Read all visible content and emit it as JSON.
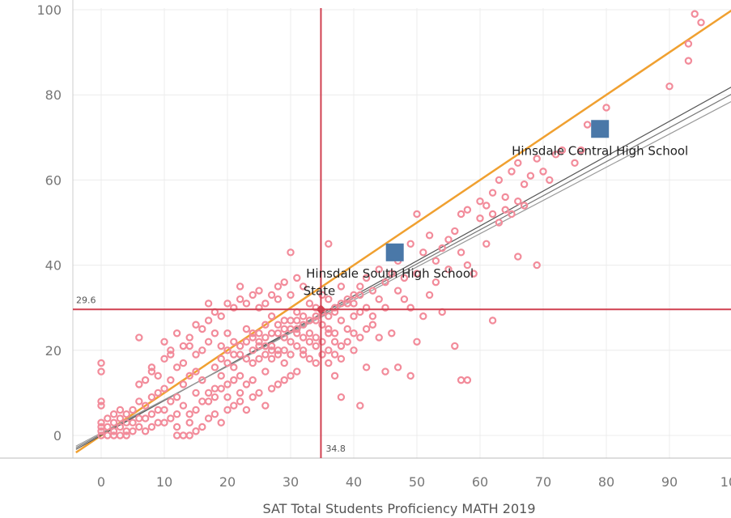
{
  "chart_data": {
    "type": "scatter",
    "title": "",
    "xlabel": "SAT Total Students Proficiency MATH 2019",
    "ylabel": "",
    "xlim": [
      -4,
      101
    ],
    "ylim": [
      -5,
      103
    ],
    "x_ticks": [
      0,
      10,
      20,
      30,
      40,
      50,
      60,
      70,
      80,
      90,
      100
    ],
    "y_ticks": [
      0,
      20,
      40,
      60,
      80,
      100
    ],
    "grid": true,
    "reference_lines": {
      "x": {
        "value": 34.8,
        "label": "34.8"
      },
      "y": {
        "value": 29.6,
        "label": "29.6"
      }
    },
    "trend_lines": [
      {
        "color": "#f0a030",
        "slope": 1.0,
        "intercept": 0
      },
      {
        "color": "#555555",
        "slope": 0.82,
        "intercept": 0
      },
      {
        "color": "#777777",
        "slope": 0.8,
        "intercept": 0.3
      },
      {
        "color": "#999999",
        "slope": 0.78,
        "intercept": 0.6
      }
    ],
    "highlighted": [
      {
        "name": "Hinsdale Central High School",
        "x": 79,
        "y": 72
      },
      {
        "name": "Hinsdale South High School",
        "x": 46.5,
        "y": 43
      }
    ],
    "state_point": {
      "name": "State",
      "x": 34.8,
      "y": 29.6
    },
    "colors": {
      "points": "#f28b9a",
      "highlight": "#4a78a8",
      "reference": "#d04050",
      "grid": "#ececec"
    },
    "points": [
      [
        0,
        0
      ],
      [
        0,
        1
      ],
      [
        0,
        2
      ],
      [
        0,
        3
      ],
      [
        0,
        7
      ],
      [
        0,
        8
      ],
      [
        0,
        15
      ],
      [
        0,
        17
      ],
      [
        1,
        0
      ],
      [
        1,
        2
      ],
      [
        1,
        4
      ],
      [
        2,
        1
      ],
      [
        2,
        3
      ],
      [
        2,
        5
      ],
      [
        3,
        2
      ],
      [
        3,
        4
      ],
      [
        3,
        6
      ],
      [
        4,
        1
      ],
      [
        4,
        3
      ],
      [
        4,
        5
      ],
      [
        5,
        3
      ],
      [
        5,
        6
      ],
      [
        6,
        2
      ],
      [
        6,
        8
      ],
      [
        6,
        12
      ],
      [
        6,
        23
      ],
      [
        7,
        4
      ],
      [
        7,
        7
      ],
      [
        7,
        13
      ],
      [
        8,
        5
      ],
      [
        8,
        9
      ],
      [
        8,
        15
      ],
      [
        8,
        16
      ],
      [
        9,
        3
      ],
      [
        9,
        10
      ],
      [
        9,
        14
      ],
      [
        10,
        6
      ],
      [
        10,
        11
      ],
      [
        10,
        18
      ],
      [
        11,
        8
      ],
      [
        11,
        13
      ],
      [
        11,
        20
      ],
      [
        12,
        5
      ],
      [
        12,
        9
      ],
      [
        12,
        16
      ],
      [
        13,
        12
      ],
      [
        13,
        17
      ],
      [
        14,
        0
      ],
      [
        14,
        14
      ],
      [
        14,
        21
      ],
      [
        15,
        10
      ],
      [
        15,
        15
      ],
      [
        15,
        19
      ],
      [
        16,
        13
      ],
      [
        16,
        20
      ],
      [
        17,
        8
      ],
      [
        17,
        22
      ],
      [
        17,
        27
      ],
      [
        17,
        31
      ],
      [
        18,
        11
      ],
      [
        18,
        16
      ],
      [
        18,
        24
      ],
      [
        19,
        14
      ],
      [
        19,
        18
      ],
      [
        20,
        12
      ],
      [
        20,
        20
      ],
      [
        20,
        24
      ],
      [
        21,
        16
      ],
      [
        21,
        22
      ],
      [
        22,
        10
      ],
      [
        22,
        19
      ],
      [
        22,
        35
      ],
      [
        23,
        18
      ],
      [
        23,
        25
      ],
      [
        24,
        13
      ],
      [
        24,
        23
      ],
      [
        25,
        21
      ],
      [
        25,
        30
      ],
      [
        26,
        15
      ],
      [
        26,
        26
      ],
      [
        27,
        20
      ],
      [
        27,
        28
      ],
      [
        28,
        24
      ],
      [
        28,
        32
      ],
      [
        29,
        17
      ],
      [
        29,
        27
      ],
      [
        30,
        22
      ],
      [
        30,
        33
      ],
      [
        30,
        43
      ],
      [
        31,
        25
      ],
      [
        31,
        29
      ],
      [
        32,
        19
      ],
      [
        32,
        28
      ],
      [
        32,
        35
      ],
      [
        33,
        24
      ],
      [
        33,
        31
      ],
      [
        34,
        21
      ],
      [
        34,
        27
      ],
      [
        34,
        30
      ],
      [
        35,
        26
      ],
      [
        35,
        33
      ],
      [
        36,
        17
      ],
      [
        36,
        24
      ],
      [
        36,
        32
      ],
      [
        36,
        45
      ],
      [
        37,
        22
      ],
      [
        37,
        29
      ],
      [
        37,
        14
      ],
      [
        38,
        27
      ],
      [
        38,
        35
      ],
      [
        38,
        9
      ],
      [
        39,
        25
      ],
      [
        39,
        31
      ],
      [
        40,
        20
      ],
      [
        40,
        28
      ],
      [
        40,
        33
      ],
      [
        41,
        7
      ],
      [
        41,
        29
      ],
      [
        41,
        35
      ],
      [
        42,
        16
      ],
      [
        42,
        30
      ],
      [
        42,
        37
      ],
      [
        43,
        28
      ],
      [
        43,
        34
      ],
      [
        44,
        23
      ],
      [
        44,
        32
      ],
      [
        44,
        39
      ],
      [
        45,
        15
      ],
      [
        45,
        30
      ],
      [
        45,
        36
      ],
      [
        46,
        24
      ],
      [
        46,
        38
      ],
      [
        47,
        16
      ],
      [
        47,
        34
      ],
      [
        47,
        41
      ],
      [
        48,
        32
      ],
      [
        48,
        37
      ],
      [
        49,
        14
      ],
      [
        49,
        30
      ],
      [
        49,
        45
      ],
      [
        50,
        22
      ],
      [
        50,
        38
      ],
      [
        50,
        52
      ],
      [
        51,
        28
      ],
      [
        51,
        43
      ],
      [
        52,
        33
      ],
      [
        52,
        47
      ],
      [
        53,
        41
      ],
      [
        53,
        36
      ],
      [
        54,
        44
      ],
      [
        54,
        29
      ],
      [
        55,
        39
      ],
      [
        55,
        46
      ],
      [
        56,
        21
      ],
      [
        56,
        48
      ],
      [
        57,
        13
      ],
      [
        57,
        43
      ],
      [
        57,
        52
      ],
      [
        58,
        13
      ],
      [
        58,
        40
      ],
      [
        58,
        53
      ],
      [
        59,
        38
      ],
      [
        60,
        55
      ],
      [
        60,
        51
      ],
      [
        61,
        54
      ],
      [
        61,
        45
      ],
      [
        62,
        27
      ],
      [
        62,
        52
      ],
      [
        62,
        57
      ],
      [
        63,
        50
      ],
      [
        63,
        60
      ],
      [
        64,
        53
      ],
      [
        64,
        56
      ],
      [
        65,
        52
      ],
      [
        65,
        62
      ],
      [
        66,
        42
      ],
      [
        66,
        55
      ],
      [
        66,
        64
      ],
      [
        67,
        54
      ],
      [
        67,
        59
      ],
      [
        68,
        61
      ],
      [
        69,
        40
      ],
      [
        69,
        65
      ],
      [
        70,
        62
      ],
      [
        71,
        60
      ],
      [
        72,
        66
      ],
      [
        73,
        67
      ],
      [
        75,
        64
      ],
      [
        76,
        67
      ],
      [
        77,
        73
      ],
      [
        80,
        77
      ],
      [
        90,
        82
      ],
      [
        93,
        88
      ],
      [
        93,
        92
      ],
      [
        94,
        99
      ],
      [
        95,
        97
      ],
      [
        2,
        0
      ],
      [
        3,
        0
      ],
      [
        4,
        0
      ],
      [
        5,
        1
      ],
      [
        6,
        4
      ],
      [
        7,
        1
      ],
      [
        8,
        2
      ],
      [
        9,
        6
      ],
      [
        10,
        3
      ],
      [
        11,
        4
      ],
      [
        12,
        2
      ],
      [
        13,
        7
      ],
      [
        14,
        5
      ],
      [
        15,
        6
      ],
      [
        16,
        8
      ],
      [
        17,
        10
      ],
      [
        18,
        9
      ],
      [
        19,
        11
      ],
      [
        20,
        9
      ],
      [
        21,
        13
      ],
      [
        22,
        14
      ],
      [
        23,
        12
      ],
      [
        24,
        17
      ],
      [
        25,
        18
      ],
      [
        26,
        19
      ],
      [
        27,
        21
      ],
      [
        28,
        20
      ],
      [
        29,
        23
      ],
      [
        30,
        25
      ],
      [
        31,
        24
      ],
      [
        32,
        26
      ],
      [
        33,
        27
      ],
      [
        34,
        28
      ],
      [
        35,
        29
      ],
      [
        36,
        28
      ],
      [
        37,
        30
      ],
      [
        38,
        31
      ],
      [
        39,
        32
      ],
      [
        40,
        31
      ],
      [
        41,
        33
      ],
      [
        12,
        0
      ],
      [
        13,
        0
      ],
      [
        14,
        3
      ],
      [
        15,
        1
      ],
      [
        16,
        2
      ],
      [
        17,
        4
      ],
      [
        18,
        5
      ],
      [
        19,
        3
      ],
      [
        20,
        6
      ],
      [
        21,
        7
      ],
      [
        22,
        8
      ],
      [
        23,
        6
      ],
      [
        24,
        9
      ],
      [
        25,
        10
      ],
      [
        26,
        7
      ],
      [
        27,
        11
      ],
      [
        28,
        12
      ],
      [
        29,
        13
      ],
      [
        30,
        14
      ],
      [
        31,
        15
      ],
      [
        10,
        22
      ],
      [
        11,
        19
      ],
      [
        12,
        24
      ],
      [
        13,
        21
      ],
      [
        14,
        23
      ],
      [
        15,
        26
      ],
      [
        16,
        25
      ],
      [
        18,
        29
      ],
      [
        19,
        28
      ],
      [
        20,
        31
      ],
      [
        21,
        30
      ],
      [
        22,
        32
      ],
      [
        23,
        31
      ],
      [
        24,
        33
      ],
      [
        25,
        34
      ],
      [
        26,
        31
      ],
      [
        27,
        33
      ],
      [
        28,
        35
      ],
      [
        29,
        36
      ],
      [
        31,
        37
      ],
      [
        24,
        24
      ],
      [
        25,
        24
      ],
      [
        26,
        23
      ],
      [
        27,
        24
      ],
      [
        28,
        26
      ],
      [
        29,
        25
      ],
      [
        30,
        27
      ],
      [
        31,
        27
      ],
      [
        32,
        23
      ],
      [
        33,
        22
      ],
      [
        34,
        23
      ],
      [
        35,
        22
      ],
      [
        36,
        25
      ],
      [
        37,
        24
      ],
      [
        38,
        21
      ],
      [
        39,
        22
      ],
      [
        40,
        24
      ],
      [
        41,
        23
      ],
      [
        42,
        25
      ],
      [
        43,
        26
      ],
      [
        19,
        21
      ],
      [
        20,
        17
      ],
      [
        21,
        19
      ],
      [
        22,
        21
      ],
      [
        23,
        22
      ],
      [
        24,
        20
      ],
      [
        25,
        22
      ],
      [
        26,
        21
      ],
      [
        27,
        18
      ],
      [
        28,
        19
      ],
      [
        29,
        20
      ],
      [
        30,
        19
      ],
      [
        31,
        21
      ],
      [
        32,
        20
      ],
      [
        33,
        18
      ],
      [
        34,
        17
      ],
      [
        35,
        19
      ],
      [
        36,
        20
      ],
      [
        37,
        19
      ],
      [
        38,
        18
      ]
    ]
  }
}
